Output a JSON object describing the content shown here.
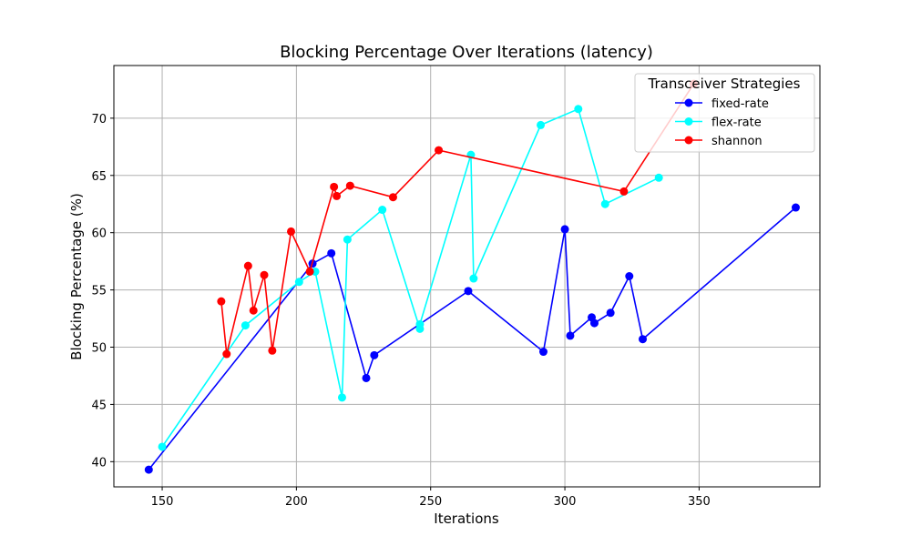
{
  "chart_data": {
    "type": "line",
    "title": "Blocking Percentage Over Iterations (latency)",
    "xlabel": "Iterations",
    "ylabel": "Blocking Percentage (%)",
    "xlim": [
      132,
      395
    ],
    "ylim": [
      37.8,
      74.6
    ],
    "xticks": [
      150,
      200,
      250,
      300,
      350
    ],
    "yticks": [
      40,
      45,
      50,
      55,
      60,
      65,
      70
    ],
    "grid": true,
    "legend": {
      "title": "Transceiver Strategies",
      "position": "top-right"
    },
    "series": [
      {
        "name": "fixed-rate",
        "color": "#0000ff",
        "points": [
          [
            145,
            39.3
          ],
          [
            206,
            57.3
          ],
          [
            213,
            58.2
          ],
          [
            226,
            47.3
          ],
          [
            229,
            49.3
          ],
          [
            264,
            54.9
          ],
          [
            292,
            49.6
          ],
          [
            300,
            60.3
          ],
          [
            302,
            51.0
          ],
          [
            310,
            52.6
          ],
          [
            311,
            52.1
          ],
          [
            317,
            53.0
          ],
          [
            324,
            56.2
          ],
          [
            329,
            50.7
          ],
          [
            386,
            62.2
          ]
        ]
      },
      {
        "name": "flex-rate",
        "color": "#00ffff",
        "points": [
          [
            150,
            41.3
          ],
          [
            181,
            51.9
          ],
          [
            201,
            55.7
          ],
          [
            207,
            56.6
          ],
          [
            217,
            45.6
          ],
          [
            219,
            59.4
          ],
          [
            232,
            62.0
          ],
          [
            246,
            51.6
          ],
          [
            246,
            52.0
          ],
          [
            265,
            66.8
          ],
          [
            266,
            56.0
          ],
          [
            291,
            69.4
          ],
          [
            305,
            70.8
          ],
          [
            315,
            62.5
          ],
          [
            335,
            64.8
          ]
        ]
      },
      {
        "name": "shannon",
        "color": "#ff0000",
        "points": [
          [
            172,
            54.0
          ],
          [
            174,
            49.4
          ],
          [
            182,
            57.1
          ],
          [
            184,
            53.2
          ],
          [
            188,
            56.3
          ],
          [
            191,
            49.7
          ],
          [
            198,
            60.1
          ],
          [
            205,
            56.6
          ],
          [
            214,
            64.0
          ],
          [
            215,
            63.2
          ],
          [
            220,
            64.1
          ],
          [
            236,
            63.1
          ],
          [
            253,
            67.2
          ],
          [
            322,
            63.6
          ],
          [
            348,
            73.0
          ]
        ]
      }
    ]
  }
}
